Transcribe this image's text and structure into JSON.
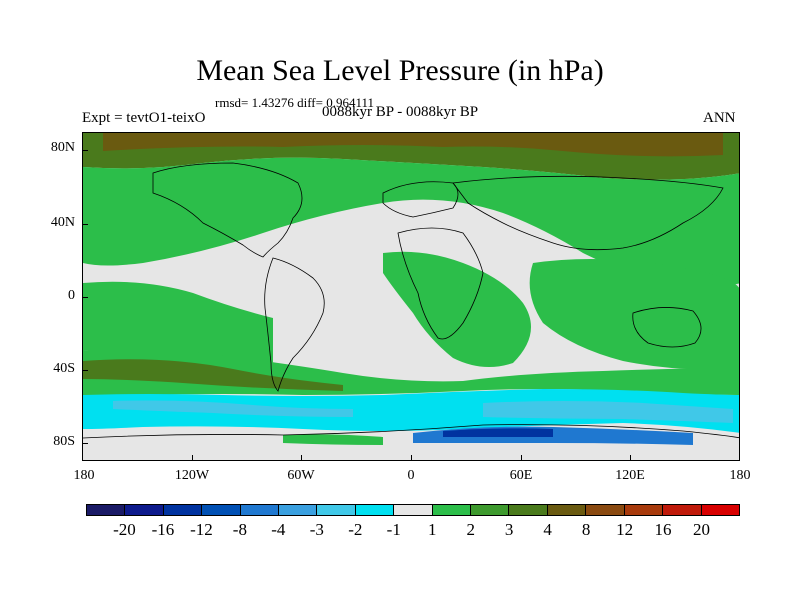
{
  "title": "Mean Sea Level Pressure (in hPa)",
  "stats": {
    "rmsd_text": "rmsd= 1.43276 diff= 0.964111"
  },
  "subtitle": "0088kyr BP - 0088kyr BP",
  "experiment": "Expt = tevtO1-teixO",
  "season": "ANN",
  "map": {
    "lat_labels": [
      "80N",
      "40N",
      "0",
      "40S",
      "80S"
    ],
    "lon_labels": [
      "180",
      "120W",
      "60W",
      "0",
      "60E",
      "120E",
      "180"
    ]
  },
  "colorbar": {
    "labels": [
      "-20",
      "-16",
      "-12",
      "-8",
      "-4",
      "-3",
      "-2",
      "-1",
      "1",
      "2",
      "3",
      "4",
      "8",
      "12",
      "16",
      "20"
    ],
    "colors": [
      "#1a1a66",
      "#0d1a8c",
      "#0033a0",
      "#0050b4",
      "#1f78d0",
      "#3aa0e0",
      "#40c8e8",
      "#00e0f0",
      "#e6e6e6",
      "#2cbe4a",
      "#3e9a2e",
      "#4a7a1c",
      "#6a5a10",
      "#8a4a10",
      "#a83a0c",
      "#c01a0a",
      "#d80000"
    ]
  }
}
